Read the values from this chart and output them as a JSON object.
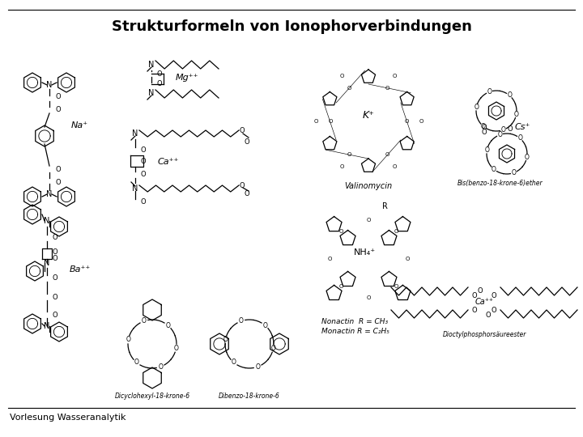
{
  "title": "Strukturformeln von Ionophorverbindungen",
  "footer": "Vorlesung Wasseranalytik",
  "bg_color": "#ffffff",
  "title_fontsize": 13,
  "footer_fontsize": 8,
  "nonactin_label": "Nonactin  R = CH₃",
  "monactin_label": "Monactin R = C₂H₅",
  "crown1_label": "Dicyclohexyl-18-krone-6",
  "crown2_label": "Dibenzo-18-krone-6",
  "benzo_label": "Bis(benzo-18-krone-6)ether",
  "dioctyl_label": "Dioctylphosphorsäureester",
  "valinomycin_label": "Valinomycin"
}
